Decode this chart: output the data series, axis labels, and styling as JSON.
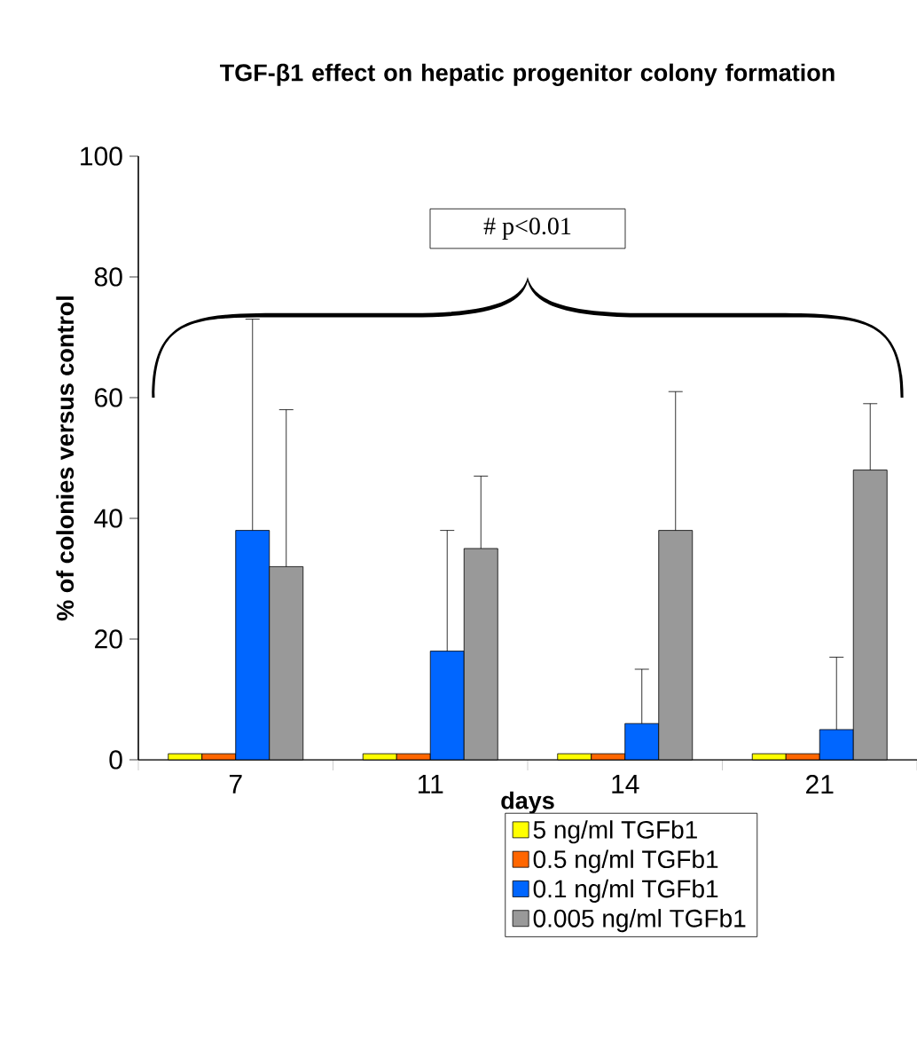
{
  "chart_data": {
    "type": "bar",
    "title": "TGF-β1 effect on hepatic progenitor colony formation",
    "xlabel": "days",
    "ylabel": "% of colonies versus control",
    "categories": [
      "7",
      "11",
      "14",
      "21"
    ],
    "series": [
      {
        "name": "5 ng/ml TGFb1",
        "color": "#ffff00",
        "values": [
          1,
          1,
          1,
          1
        ]
      },
      {
        "name": "0.5 ng/ml TGFb1",
        "color": "#ff6600",
        "values": [
          1,
          1,
          1,
          1
        ]
      },
      {
        "name": "0.1 ng/ml TGFb1",
        "color": "#0066ff",
        "values": [
          38,
          18,
          6,
          5
        ],
        "errors": [
          [
            38,
            73
          ],
          [
            18,
            38
          ],
          [
            6,
            15
          ],
          [
            5,
            17
          ]
        ]
      },
      {
        "name": "0.005 ng/ml TGFb1",
        "color": "#999999",
        "values": [
          32,
          35,
          38,
          48
        ],
        "errors": [
          [
            32,
            58
          ],
          [
            35,
            47
          ],
          [
            38,
            61
          ],
          [
            48,
            59
          ]
        ]
      }
    ],
    "ylim": [
      0,
      100
    ],
    "yticks": [
      0,
      20,
      40,
      60,
      80,
      100
    ],
    "grid": false,
    "legend": "bottom",
    "annotations": [
      "# p<0.01"
    ]
  }
}
